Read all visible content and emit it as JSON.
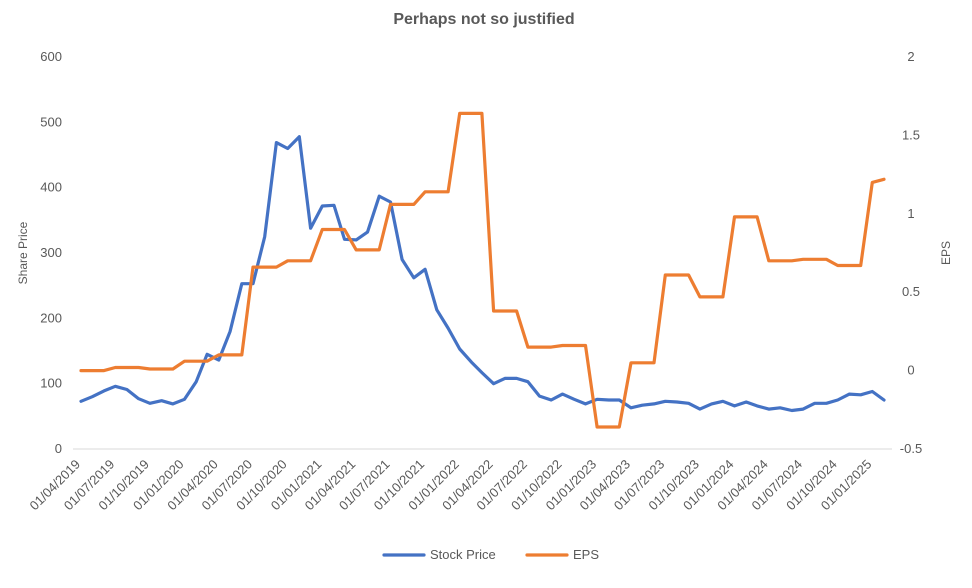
{
  "chart_data": {
    "type": "line",
    "title": "Perhaps not so justified",
    "ylabel": "Share Price",
    "y2label": "EPS",
    "ylim": [
      0,
      600
    ],
    "y2lim": [
      -0.5,
      2
    ],
    "yticks": [
      "0",
      "100",
      "200",
      "300",
      "400",
      "500",
      "600"
    ],
    "y2ticks": [
      "-0.5",
      "0",
      "0.5",
      "1",
      "1.5",
      "2"
    ],
    "xticks": [
      "01/04/2019",
      "01/07/2019",
      "01/10/2019",
      "01/01/2020",
      "01/04/2020",
      "01/07/2020",
      "01/10/2020",
      "01/01/2021",
      "01/04/2021",
      "01/07/2021",
      "01/10/2021",
      "01/01/2022",
      "01/04/2022",
      "01/07/2022",
      "01/10/2022",
      "01/01/2023",
      "01/04/2023",
      "01/07/2023",
      "01/10/2023",
      "01/01/2024",
      "01/04/2024",
      "01/07/2024",
      "01/10/2024",
      "01/01/2025"
    ],
    "legend_position": "bottom",
    "grid": false,
    "series": [
      {
        "name": "Stock Price",
        "axis": "left",
        "color": "#4472C4",
        "points": [
          [
            "2019-04-01",
            73
          ],
          [
            "2019-05-01",
            80
          ],
          [
            "2019-06-01",
            89
          ],
          [
            "2019-07-01",
            96
          ],
          [
            "2019-08-01",
            91
          ],
          [
            "2019-09-01",
            77
          ],
          [
            "2019-10-01",
            70
          ],
          [
            "2019-11-01",
            74
          ],
          [
            "2019-12-01",
            69
          ],
          [
            "2020-01-01",
            76
          ],
          [
            "2020-02-01",
            103
          ],
          [
            "2020-03-01",
            145
          ],
          [
            "2020-04-01",
            136
          ],
          [
            "2020-05-01",
            180
          ],
          [
            "2020-06-01",
            253
          ],
          [
            "2020-07-01",
            253
          ],
          [
            "2020-08-01",
            325
          ],
          [
            "2020-09-01",
            469
          ],
          [
            "2020-10-01",
            460
          ],
          [
            "2020-11-01",
            478
          ],
          [
            "2020-12-01",
            338
          ],
          [
            "2021-01-01",
            372
          ],
          [
            "2021-02-01",
            373
          ],
          [
            "2021-03-01",
            321
          ],
          [
            "2021-04-01",
            320
          ],
          [
            "2021-05-01",
            332
          ],
          [
            "2021-06-01",
            387
          ],
          [
            "2021-07-01",
            378
          ],
          [
            "2021-08-01",
            290
          ],
          [
            "2021-09-01",
            262
          ],
          [
            "2021-10-01",
            275
          ],
          [
            "2021-11-01",
            213
          ],
          [
            "2021-12-01",
            185
          ],
          [
            "2022-01-01",
            153
          ],
          [
            "2022-02-01",
            133
          ],
          [
            "2022-03-01",
            117
          ],
          [
            "2022-04-01",
            100
          ],
          [
            "2022-05-01",
            108
          ],
          [
            "2022-06-01",
            108
          ],
          [
            "2022-07-01",
            103
          ],
          [
            "2022-08-01",
            81
          ],
          [
            "2022-09-01",
            75
          ],
          [
            "2022-10-01",
            84
          ],
          [
            "2022-11-01",
            76
          ],
          [
            "2022-12-01",
            69
          ],
          [
            "2023-01-01",
            76
          ],
          [
            "2023-02-01",
            75
          ],
          [
            "2023-03-01",
            75
          ],
          [
            "2023-04-01",
            63
          ],
          [
            "2023-05-01",
            67
          ],
          [
            "2023-06-01",
            69
          ],
          [
            "2023-07-01",
            73
          ],
          [
            "2023-08-01",
            72
          ],
          [
            "2023-09-01",
            70
          ],
          [
            "2023-10-01",
            61
          ],
          [
            "2023-11-01",
            69
          ],
          [
            "2023-12-01",
            73
          ],
          [
            "2024-01-01",
            66
          ],
          [
            "2024-02-01",
            72
          ],
          [
            "2024-03-01",
            66
          ],
          [
            "2024-04-01",
            61
          ],
          [
            "2024-05-01",
            63
          ],
          [
            "2024-06-01",
            59
          ],
          [
            "2024-07-01",
            61
          ],
          [
            "2024-08-01",
            70
          ],
          [
            "2024-09-01",
            70
          ],
          [
            "2024-10-01",
            75
          ],
          [
            "2024-11-01",
            84
          ],
          [
            "2024-12-01",
            83
          ],
          [
            "2025-01-01",
            88
          ],
          [
            "2025-02-01",
            75
          ]
        ]
      },
      {
        "name": "EPS",
        "axis": "right",
        "color": "#ED7D31",
        "points": [
          [
            "2019-04-01",
            0.0
          ],
          [
            "2019-06-01",
            0.0
          ],
          [
            "2019-07-01",
            0.02
          ],
          [
            "2019-09-01",
            0.02
          ],
          [
            "2019-10-01",
            0.01
          ],
          [
            "2019-12-01",
            0.01
          ],
          [
            "2020-01-01",
            0.06
          ],
          [
            "2020-03-01",
            0.06
          ],
          [
            "2020-04-01",
            0.1
          ],
          [
            "2020-06-01",
            0.1
          ],
          [
            "2020-07-01",
            0.66
          ],
          [
            "2020-09-01",
            0.66
          ],
          [
            "2020-10-01",
            0.7
          ],
          [
            "2020-12-01",
            0.7
          ],
          [
            "2021-01-01",
            0.9
          ],
          [
            "2021-03-01",
            0.9
          ],
          [
            "2021-04-01",
            0.77
          ],
          [
            "2021-06-01",
            0.77
          ],
          [
            "2021-07-01",
            1.06
          ],
          [
            "2021-09-01",
            1.06
          ],
          [
            "2021-10-01",
            1.14
          ],
          [
            "2021-12-01",
            1.14
          ],
          [
            "2022-01-01",
            1.64
          ],
          [
            "2022-03-01",
            1.64
          ],
          [
            "2022-04-01",
            0.38
          ],
          [
            "2022-06-01",
            0.38
          ],
          [
            "2022-07-01",
            0.15
          ],
          [
            "2022-09-01",
            0.15
          ],
          [
            "2022-10-01",
            0.16
          ],
          [
            "2022-12-01",
            0.16
          ],
          [
            "2023-01-01",
            -0.36
          ],
          [
            "2023-03-01",
            -0.36
          ],
          [
            "2023-04-01",
            0.05
          ],
          [
            "2023-06-01",
            0.05
          ],
          [
            "2023-07-01",
            0.61
          ],
          [
            "2023-09-01",
            0.61
          ],
          [
            "2023-10-01",
            0.47
          ],
          [
            "2023-12-01",
            0.47
          ],
          [
            "2024-01-01",
            0.98
          ],
          [
            "2024-03-01",
            0.98
          ],
          [
            "2024-04-01",
            0.7
          ],
          [
            "2024-06-01",
            0.7
          ],
          [
            "2024-07-01",
            0.71
          ],
          [
            "2024-09-01",
            0.71
          ],
          [
            "2024-10-01",
            0.67
          ],
          [
            "2024-12-01",
            0.67
          ],
          [
            "2025-01-01",
            1.2
          ],
          [
            "2025-02-01",
            1.22
          ]
        ]
      }
    ]
  }
}
